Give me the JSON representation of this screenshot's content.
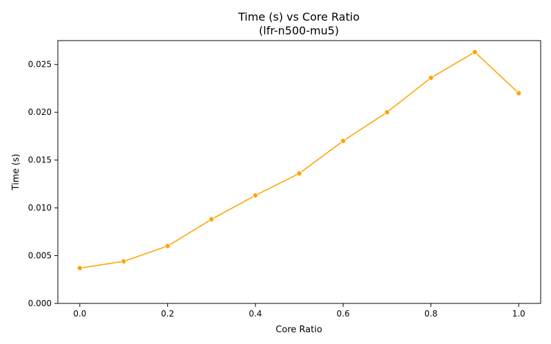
{
  "chart_data": {
    "type": "line",
    "title": "Time (s) vs Core Ratio",
    "subtitle": "(lfr-n500-mu5)",
    "xlabel": "Core Ratio",
    "ylabel": "Time (s)",
    "xlim": [
      -0.05,
      1.05
    ],
    "ylim": [
      0,
      0.0275
    ],
    "x_ticks": [
      0.0,
      0.2,
      0.4,
      0.6,
      0.8,
      1.0
    ],
    "x_tick_labels": [
      "0.0",
      "0.2",
      "0.4",
      "0.6",
      "0.8",
      "1.0"
    ],
    "y_ticks": [
      0,
      0.005,
      0.01,
      0.015,
      0.02,
      0.025
    ],
    "y_tick_labels": [
      "0.000",
      "0.005",
      "0.010",
      "0.015",
      "0.020",
      "0.025"
    ],
    "grid": false,
    "legend": "none",
    "series": [
      {
        "color": "#ffa500",
        "marker": "circle",
        "x": [
          0.0,
          0.1,
          0.2,
          0.3,
          0.4,
          0.5,
          0.6,
          0.7,
          0.8,
          0.9,
          1.0
        ],
        "y": [
          0.0037,
          0.0044,
          0.006,
          0.0088,
          0.0113,
          0.0136,
          0.017,
          0.02,
          0.0236,
          0.0263,
          0.022
        ]
      }
    ]
  }
}
